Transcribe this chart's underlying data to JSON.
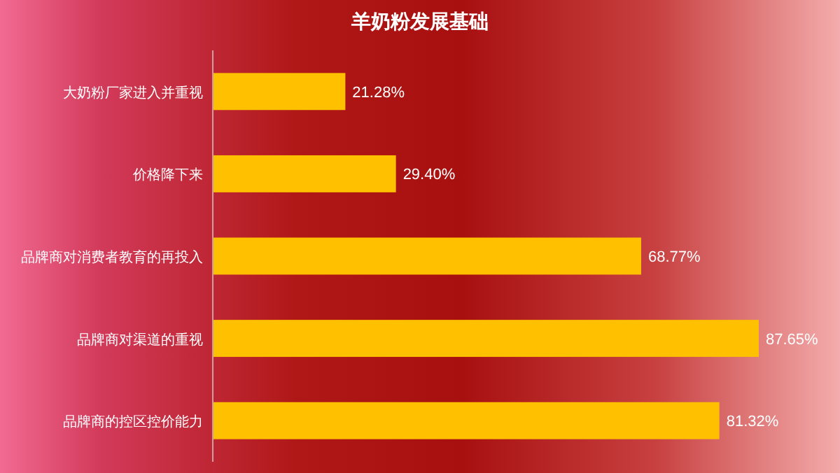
{
  "chart_data": {
    "type": "bar",
    "orientation": "horizontal",
    "title": "羊奶粉发展基础",
    "categories": [
      "大奶粉厂家进入并重视",
      "价格降下来",
      "品牌商对消费者教育的再投入",
      "品牌商对渠道的重视",
      "品牌商的控区控价能力"
    ],
    "values": [
      21.28,
      29.4,
      68.77,
      87.65,
      81.32
    ],
    "value_labels": [
      "21.28%",
      "29.40%",
      "68.77%",
      "87.65%",
      "81.32%"
    ],
    "color": "#ffc000"
  }
}
